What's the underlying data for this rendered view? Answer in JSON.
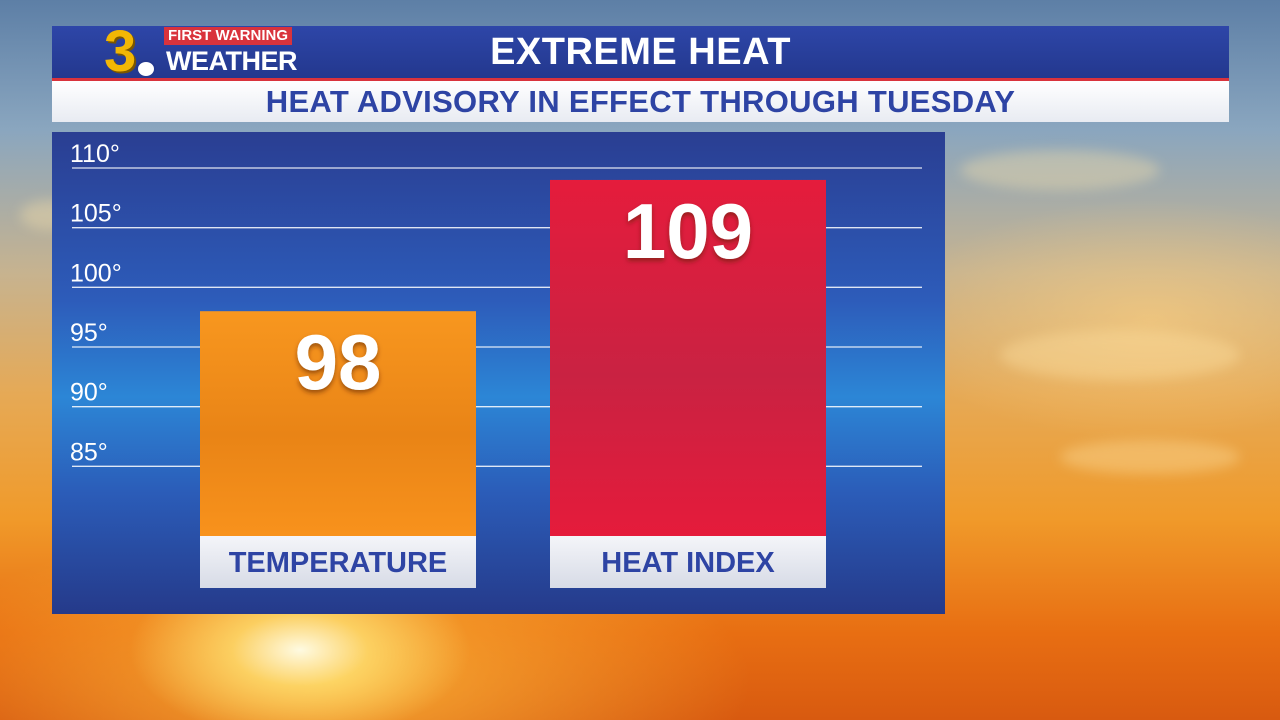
{
  "header": {
    "title": "EXTREME HEAT",
    "subtitle": "HEAT ADVISORY IN EFFECT THROUGH TUESDAY"
  },
  "logo": {
    "channel": "3",
    "line1": "FIRST WARNING",
    "line2": "WEATHER"
  },
  "colors": {
    "header_blue": "#2a42a0",
    "accent_red": "#d9333c",
    "temperature_bar": "#f7911c",
    "heat_index_bar": "#e31b3b",
    "label_box": "#e6e9f1"
  },
  "chart_data": {
    "type": "bar",
    "title": "EXTREME HEAT",
    "subtitle": "HEAT ADVISORY IN EFFECT THROUGH TUESDAY",
    "categories": [
      "TEMPERATURE",
      "HEAT INDEX"
    ],
    "values": [
      98,
      109
    ],
    "value_labels": [
      "98",
      "109"
    ],
    "bar_colors": [
      "#f7911c",
      "#e31b3b"
    ],
    "ylim": [
      80,
      110
    ],
    "yticks": [
      85,
      90,
      95,
      100,
      105,
      110
    ],
    "ytick_labels": [
      "85°",
      "90°",
      "95°",
      "100°",
      "105°",
      "110°"
    ],
    "grid": true,
    "xlabel": "",
    "ylabel": ""
  }
}
